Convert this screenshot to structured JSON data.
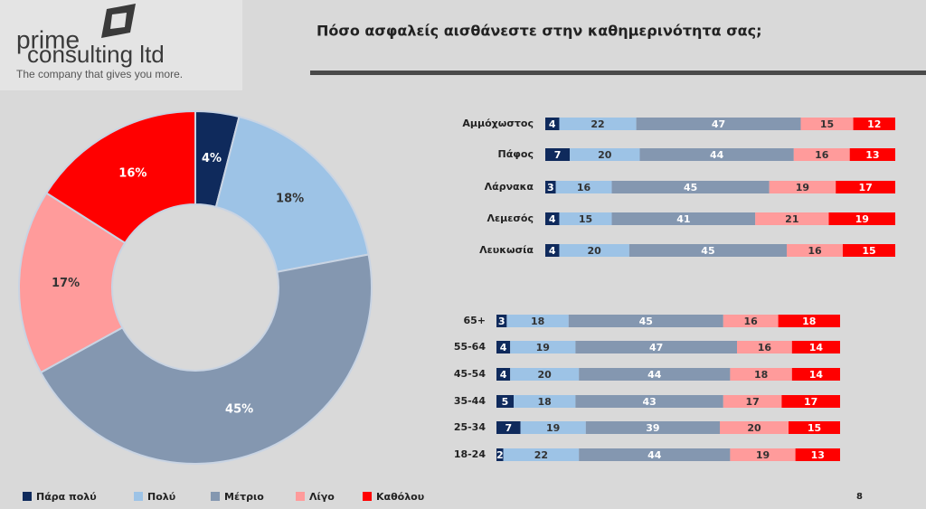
{
  "logo": {
    "name_line1": "prime",
    "name_line2": "consulting ltd",
    "tagline": "The company that gives you more."
  },
  "title": "Πόσο ασφαλείς αισθάνεστε στην καθημερινότητα σας;",
  "page_number": 8,
  "chart_data": [
    {
      "type": "pie",
      "donut": true,
      "categories": [
        "Πάρα πολύ",
        "Πολύ",
        "Μέτριο",
        "Λίγο",
        "Καθόλου"
      ],
      "values": [
        4,
        18,
        45,
        17,
        16
      ],
      "value_labels": [
        "4%",
        "18%",
        "45%",
        "17%",
        "16%"
      ],
      "colors": [
        "#0f2a5c",
        "#9dc3e6",
        "#8497b0",
        "#ff9b9b",
        "#ff0000"
      ]
    },
    {
      "type": "bar",
      "orientation": "horizontal",
      "stacked": true,
      "categories": [
        "Αμμόχωστος",
        "Πάφος",
        "Λάρνακα",
        "Λεμεσός",
        "Λευκωσία"
      ],
      "series": [
        {
          "color": "#0f2a5c",
          "values": [
            4,
            7,
            3,
            4,
            4
          ]
        },
        {
          "color": "#9dc3e6",
          "values": [
            22,
            20,
            16,
            15,
            20
          ]
        },
        {
          "color": "#8497b0",
          "values": [
            47,
            44,
            45,
            41,
            45
          ]
        },
        {
          "color": "#ff9b9b",
          "values": [
            15,
            16,
            19,
            21,
            16
          ]
        },
        {
          "color": "#ff0000",
          "values": [
            12,
            13,
            17,
            19,
            15
          ]
        }
      ]
    },
    {
      "type": "bar",
      "orientation": "horizontal",
      "stacked": true,
      "categories": [
        "65+",
        "55-64",
        "45-54",
        "35-44",
        "25-34",
        "18-24"
      ],
      "series": [
        {
          "color": "#0f2a5c",
          "values": [
            3,
            4,
            4,
            5,
            7,
            2
          ]
        },
        {
          "color": "#9dc3e6",
          "values": [
            18,
            19,
            20,
            18,
            19,
            22
          ]
        },
        {
          "color": "#8497b0",
          "values": [
            45,
            47,
            44,
            43,
            39,
            44
          ]
        },
        {
          "color": "#ff9b9b",
          "values": [
            16,
            16,
            18,
            17,
            20,
            19
          ]
        },
        {
          "color": "#ff0000",
          "values": [
            18,
            14,
            14,
            17,
            15,
            13
          ]
        }
      ]
    }
  ]
}
